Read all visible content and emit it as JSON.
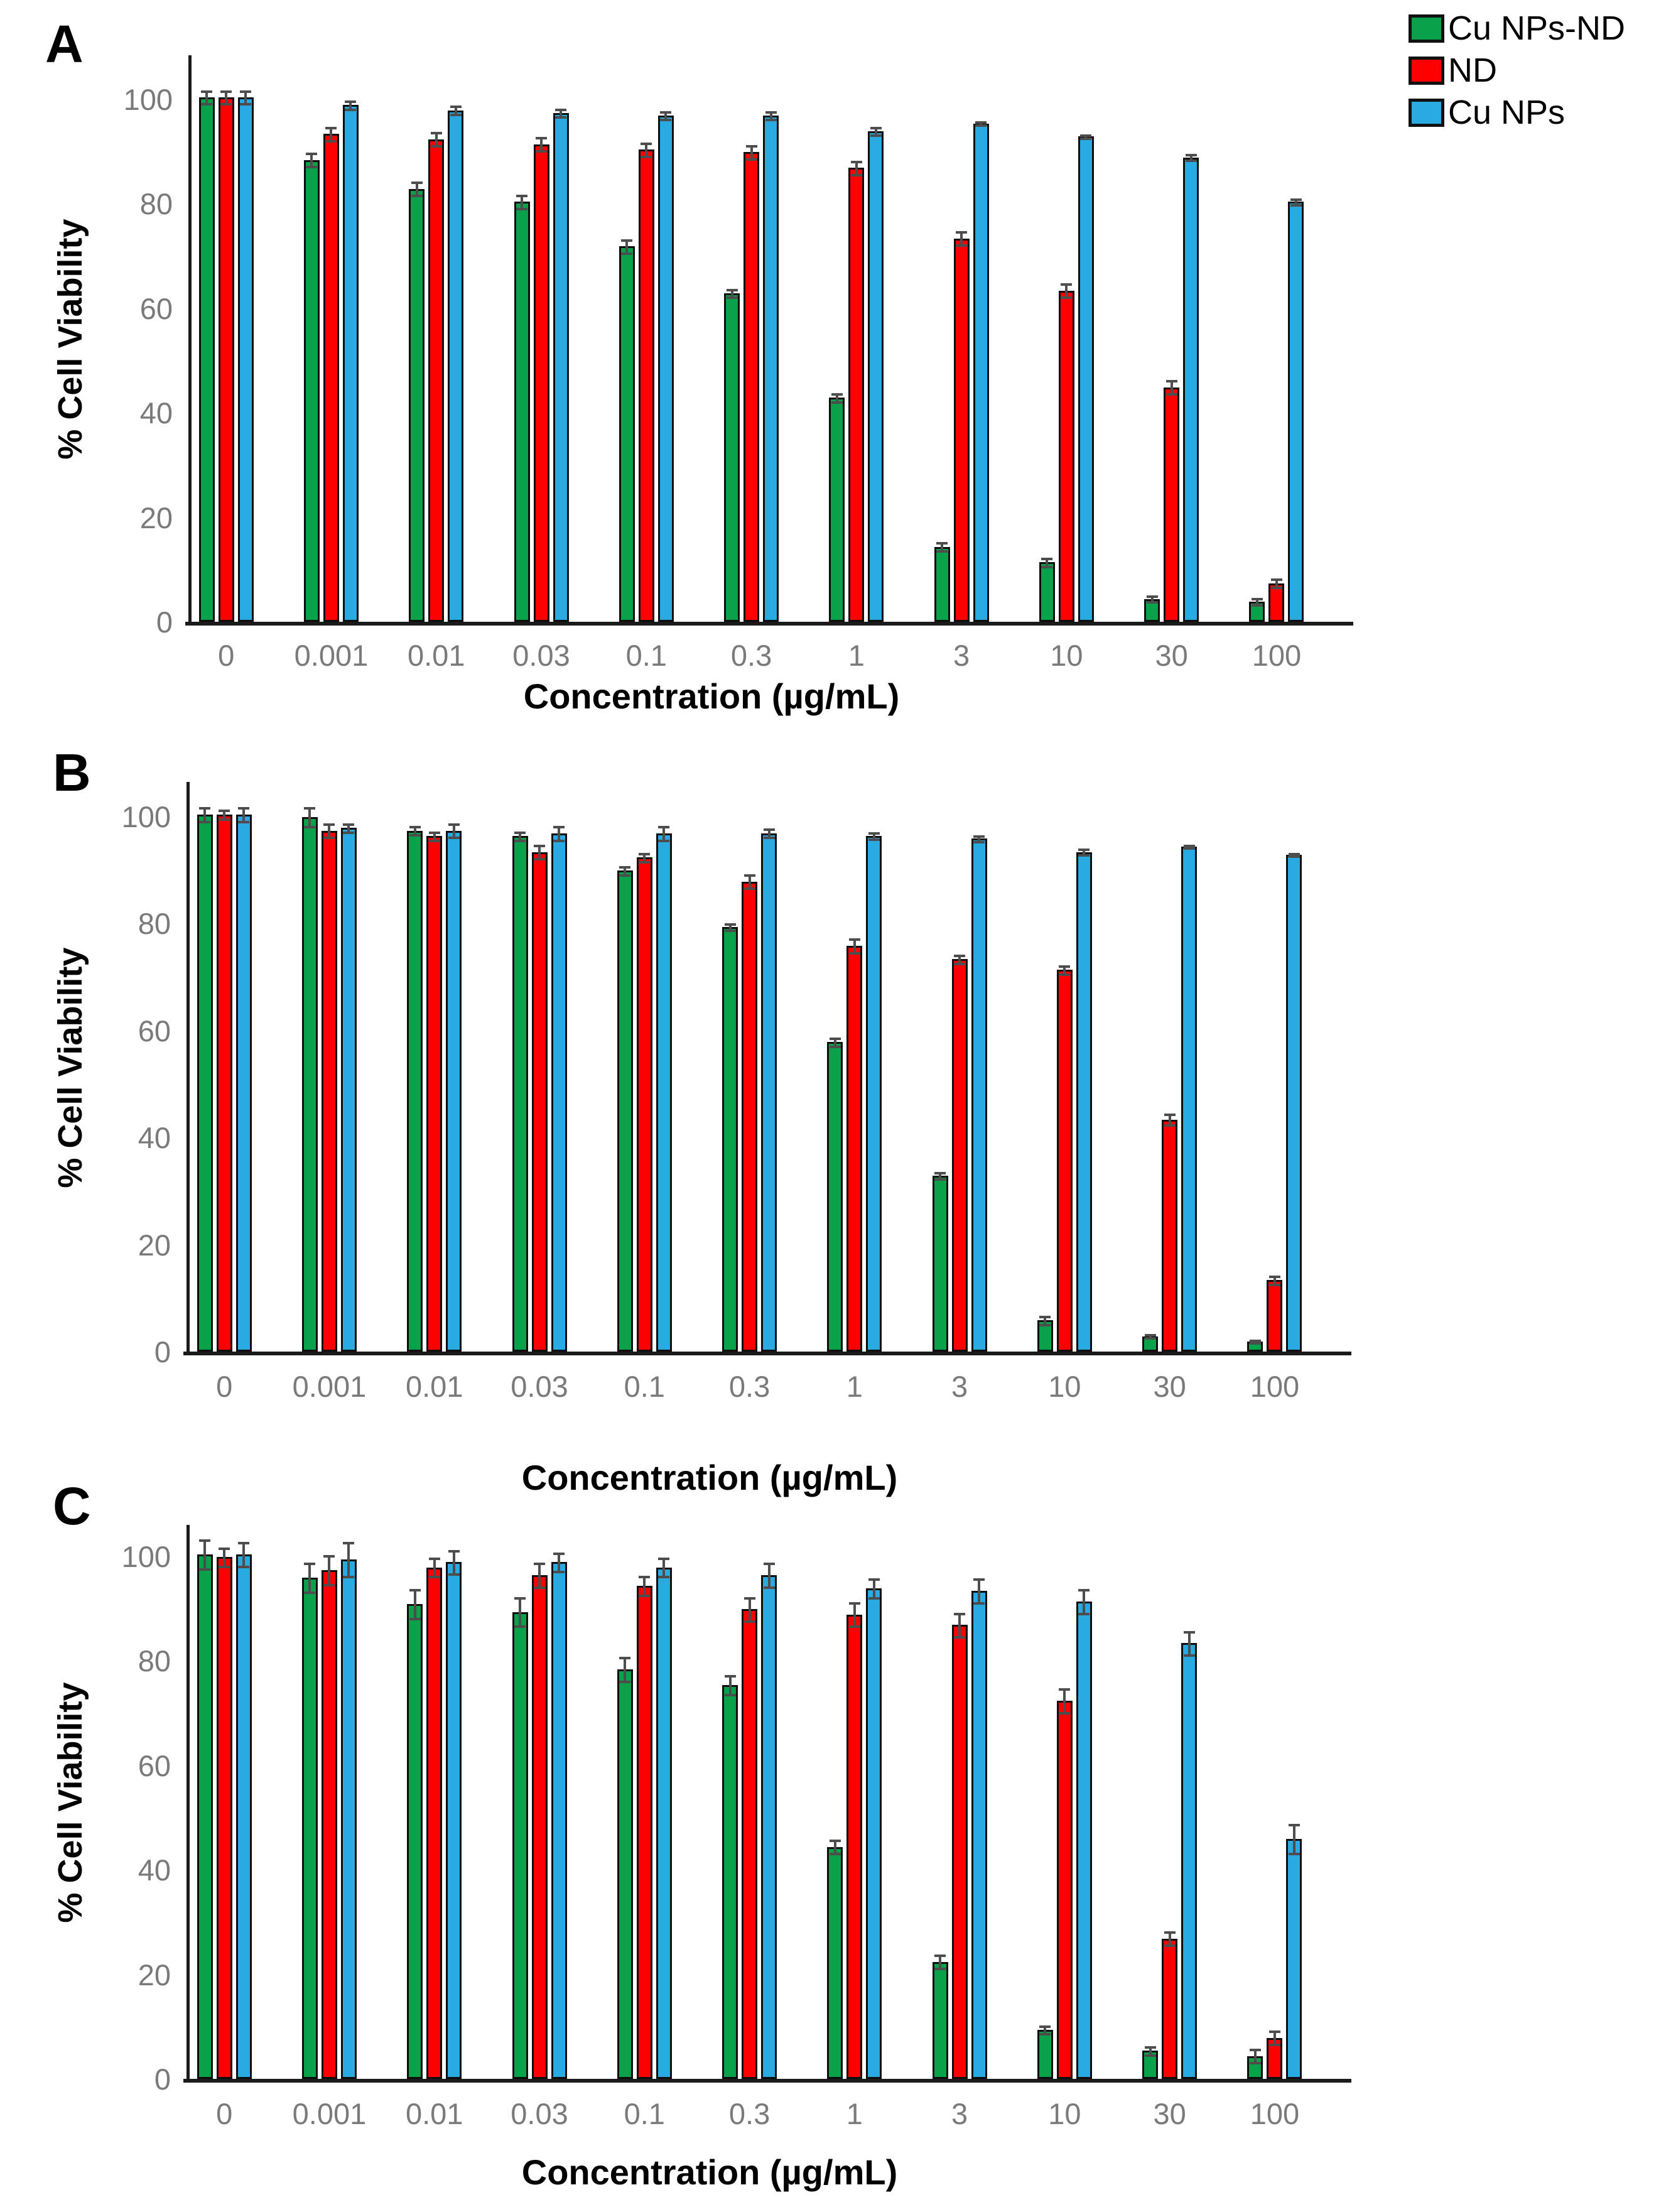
{
  "page": {
    "background": "#ffffff"
  },
  "legend": {
    "position": "top-right",
    "items": [
      {
        "label": "Cu NPs-ND",
        "color": "#0aa14b"
      },
      {
        "label": "ND",
        "color": "#fe0000"
      },
      {
        "label": "Cu NPs",
        "color": "#29abe2"
      }
    ]
  },
  "chart_data": [
    {
      "type": "bar",
      "panel_label": "A",
      "xlabel": "Concentration (µg/mL)",
      "ylabel": "% Cell Viability",
      "categories": [
        "0",
        "0.001",
        "0.01",
        "0.03",
        "0.1",
        "0.3",
        "1",
        "3",
        "10",
        "30",
        "100"
      ],
      "yticks": [
        0,
        20,
        40,
        60,
        80,
        100
      ],
      "ylim": [
        0,
        108
      ],
      "grid": false,
      "legend_position": "outside-top-right",
      "series": [
        {
          "name": "Cu NPs-ND",
          "color": "#0aa14b",
          "values": [
            100,
            88,
            82.5,
            80,
            71.5,
            62.5,
            42.5,
            14,
            11,
            4,
            3.5
          ],
          "errors": [
            1.5,
            1.5,
            1.5,
            1.5,
            1.5,
            1,
            1,
            1,
            1,
            0.8,
            0.8
          ]
        },
        {
          "name": "ND",
          "color": "#fe0000",
          "values": [
            100,
            93,
            92,
            91,
            90,
            89.5,
            86.5,
            73,
            63,
            44.5,
            7
          ],
          "errors": [
            1.5,
            1.5,
            1.5,
            1.5,
            1.5,
            1.5,
            1.5,
            1.5,
            1.5,
            1.5,
            1
          ]
        },
        {
          "name": "Cu NPs",
          "color": "#29abe2",
          "values": [
            100,
            98.5,
            97.5,
            97,
            96.5,
            96.5,
            93.5,
            95,
            92.5,
            88.5,
            80
          ],
          "errors": [
            1.5,
            1,
            1,
            1,
            1,
            1,
            1,
            0.5,
            0.5,
            0.8,
            0.8
          ]
        }
      ]
    },
    {
      "type": "bar",
      "panel_label": "B",
      "xlabel": "Concentration (µg/mL)",
      "ylabel": "% Cell Viability",
      "categories": [
        "0",
        "0.001",
        "0.01",
        "0.03",
        "0.1",
        "0.3",
        "1",
        "3",
        "10",
        "30",
        "100"
      ],
      "yticks": [
        0,
        20,
        40,
        60,
        80,
        100
      ],
      "ylim": [
        0,
        108
      ],
      "grid": false,
      "series": [
        {
          "name": "Cu NPs-ND",
          "color": "#0aa14b",
          "values": [
            100,
            99.5,
            97,
            96,
            89.5,
            79,
            57.5,
            32.5,
            5.5,
            2.5,
            1.5
          ],
          "errors": [
            1.5,
            2,
            1,
            1,
            1,
            0.8,
            1,
            0.8,
            1,
            0.5,
            0.5
          ]
        },
        {
          "name": "ND",
          "color": "#fe0000",
          "values": [
            100,
            97,
            96,
            93,
            92,
            87.5,
            75.5,
            73,
            71,
            43,
            13
          ],
          "errors": [
            1,
            1.5,
            1,
            1.5,
            1,
            1.5,
            1.5,
            1,
            1,
            1.2,
            1
          ]
        },
        {
          "name": "Cu NPs",
          "color": "#29abe2",
          "values": [
            100,
            97.5,
            97,
            96.5,
            96.5,
            96.5,
            96,
            95.5,
            93,
            94,
            92.5
          ],
          "errors": [
            1.5,
            1,
            1.5,
            1.5,
            1.5,
            1,
            0.8,
            0.8,
            0.8,
            0.5,
            0.5
          ]
        }
      ]
    },
    {
      "type": "bar",
      "panel_label": "C",
      "xlabel": "Concentration (µg/mL)",
      "ylabel": "% Cell Viability",
      "categories": [
        "0",
        "0.001",
        "0.01",
        "0.03",
        "0.1",
        "0.3",
        "1",
        "3",
        "10",
        "30",
        "100"
      ],
      "yticks": [
        0,
        20,
        40,
        60,
        80,
        100
      ],
      "ylim": [
        0,
        108
      ],
      "grid": false,
      "series": [
        {
          "name": "Cu NPs-ND",
          "color": "#0aa14b",
          "values": [
            100,
            95.5,
            90.5,
            89,
            78,
            75,
            44,
            22,
            9,
            5,
            4
          ],
          "errors": [
            3,
            3,
            3,
            3,
            2.5,
            2,
            1.5,
            1.5,
            1,
            1,
            1.5
          ]
        },
        {
          "name": "ND",
          "color": "#fe0000",
          "values": [
            99.5,
            97,
            97.5,
            96,
            94,
            89.5,
            88.5,
            86.5,
            72,
            26.5,
            7.5
          ],
          "errors": [
            2,
            3,
            2,
            2.5,
            2,
            2.5,
            2.5,
            2.5,
            2.5,
            1.5,
            1.5
          ]
        },
        {
          "name": "Cu NPs",
          "color": "#29abe2",
          "values": [
            100,
            99,
            98.5,
            98.5,
            97.5,
            96,
            93.5,
            93,
            91,
            83,
            45.5
          ],
          "errors": [
            2.5,
            3.5,
            2.5,
            2,
            2,
            2.5,
            2,
            2.5,
            2.5,
            2.5,
            3
          ]
        }
      ]
    }
  ]
}
